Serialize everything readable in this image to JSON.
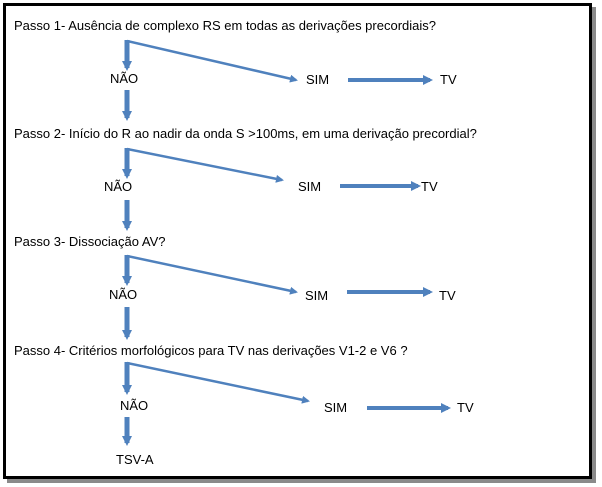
{
  "colors": {
    "arrow": "#4f81bd",
    "text": "#000000",
    "border": "#000000"
  },
  "steps": [
    {
      "question": "Passo 1- Ausência de complexo RS em todas as derivações precordiais?",
      "no": "NÃO",
      "yes": "SIM",
      "result": "TV"
    },
    {
      "question": "Passo 2- Início do R ao nadir da onda S  >100ms, em uma derivação precordial?",
      "no": "NÃO",
      "yes": "SIM",
      "result": "TV"
    },
    {
      "question": "Passo 3- Dissociação AV?",
      "no": "NÃO",
      "yes": "SIM",
      "result": "TV"
    },
    {
      "question": "Passo 4- Critérios morfológicos para TV nas derivações V1-2  e V6 ?",
      "no": "NÃO",
      "yes": "SIM",
      "result": "TV"
    }
  ],
  "final": "TSV-A"
}
